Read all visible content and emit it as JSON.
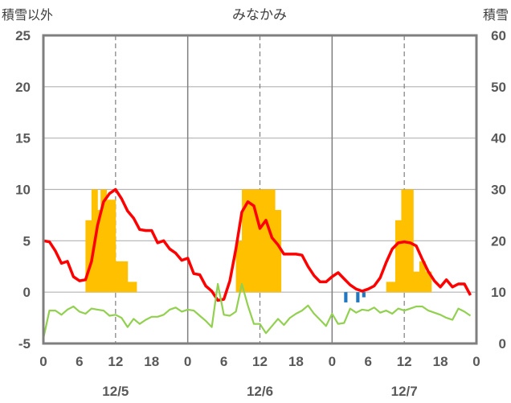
{
  "chart_data": {
    "type": "combo",
    "title": "みなかみ",
    "ylabel_left": "積雪以外",
    "ylabel_right": "積雪",
    "y_left_range": [
      -5,
      25
    ],
    "y_left_ticks": [
      "25",
      "20",
      "15",
      "10",
      "5",
      "0",
      "-5"
    ],
    "y_right_range": [
      0,
      60
    ],
    "y_right_ticks": [
      "60",
      "50",
      "40",
      "30",
      "20",
      "10",
      "0"
    ],
    "x_range": [
      0,
      72
    ],
    "x_ticks": [
      {
        "x": 0,
        "label": "0"
      },
      {
        "x": 6,
        "label": "6"
      },
      {
        "x": 12,
        "label": "12"
      },
      {
        "x": 18,
        "label": "18"
      },
      {
        "x": 24,
        "label": "0"
      },
      {
        "x": 30,
        "label": "6"
      },
      {
        "x": 36,
        "label": "12"
      },
      {
        "x": 42,
        "label": "18"
      },
      {
        "x": 48,
        "label": "0"
      },
      {
        "x": 54,
        "label": "6"
      },
      {
        "x": 60,
        "label": "12"
      },
      {
        "x": 66,
        "label": "18"
      },
      {
        "x": 72,
        "label": "0"
      }
    ],
    "date_labels": [
      {
        "x": 12,
        "label": "12/5"
      },
      {
        "x": 36,
        "label": "12/6"
      },
      {
        "x": 60,
        "label": "12/7"
      }
    ],
    "grid": {
      "day_lines": [
        24,
        48
      ],
      "dashed_hour_lines": [
        12,
        36,
        60
      ],
      "horizontal": [
        0,
        5,
        10,
        15,
        20,
        25
      ]
    },
    "series": [
      {
        "kind": "bar",
        "axis": "left",
        "color": "#ffc000",
        "x": [
          7.5,
          8,
          8.5,
          9,
          9.5,
          10,
          10.5,
          11,
          11.5,
          12,
          12.5,
          13,
          13.5,
          14,
          14.5,
          15,
          15.5,
          32.5,
          33,
          33.5,
          34,
          34.5,
          35,
          35.5,
          36,
          36.5,
          37,
          37.5,
          38,
          38.5,
          39,
          39.5,
          40,
          55.5,
          56,
          56.5,
          57,
          57.5,
          58,
          58.5,
          59,
          59.5,
          60,
          60.5,
          61,
          61.5,
          62,
          62.5,
          63,
          63.5,
          64,
          64.5
        ],
        "values": [
          7,
          7,
          10,
          10,
          8,
          10,
          10,
          9,
          9,
          9,
          3,
          3,
          3,
          3,
          1,
          1,
          1,
          5,
          5,
          10,
          10,
          10,
          10,
          10,
          10,
          10,
          10,
          10,
          10,
          10,
          8,
          8,
          0,
          0,
          0,
          0,
          0,
          1,
          1,
          1,
          7,
          7,
          10,
          10,
          10,
          10,
          2,
          2,
          3,
          3,
          2,
          2
        ]
      },
      {
        "kind": "bar",
        "axis": "left",
        "color": "#1f78c1",
        "x": [
          50.5,
          52.5,
          53.5
        ],
        "values": [
          -1,
          -1,
          -0.5
        ]
      },
      {
        "kind": "line",
        "axis": "left",
        "color": "#ff0000",
        "x": [
          0,
          1,
          2,
          3,
          4,
          5,
          6,
          7,
          8,
          9,
          10,
          11,
          12,
          13,
          14,
          15,
          16,
          17,
          18,
          19,
          20,
          21,
          22,
          23,
          24,
          25,
          26,
          27,
          28,
          29,
          30,
          31,
          32,
          33,
          34,
          35,
          36,
          37,
          38,
          39,
          40,
          41,
          42,
          43,
          44,
          45,
          46,
          47,
          48,
          49,
          50,
          51,
          52,
          53,
          54,
          55,
          56,
          57,
          58,
          59,
          60,
          61,
          62,
          63,
          64,
          65,
          66,
          67,
          68,
          69,
          70,
          71
        ],
        "values": [
          5,
          4.9,
          4,
          2.8,
          3,
          1.5,
          1.1,
          1.2,
          3,
          6.5,
          8.8,
          9.6,
          10,
          9.1,
          7.9,
          7.2,
          6.1,
          6,
          6,
          4.8,
          5,
          4.2,
          3.8,
          3.1,
          3.3,
          1.8,
          1.7,
          0.6,
          0.1,
          -0.8,
          -0.7,
          1.1,
          4.2,
          7.8,
          8.8,
          8.4,
          6.2,
          7,
          5.3,
          4.6,
          3.7,
          3.7,
          3.7,
          3.6,
          2.5,
          1.6,
          1,
          1,
          1.5,
          1.9,
          1.3,
          0.7,
          0.3,
          0.1,
          0.3,
          0.6,
          1.4,
          2.9,
          4.2,
          4.8,
          4.9,
          4.8,
          4.5,
          3.2,
          2,
          1.1,
          0.5,
          1.2,
          0.5,
          0.8,
          0.8,
          -0.3
        ]
      },
      {
        "kind": "line",
        "axis": "left",
        "color": "#92d050",
        "x": [
          0,
          1,
          2,
          3,
          4,
          5,
          6,
          7,
          8,
          9,
          10,
          11,
          12,
          13,
          14,
          15,
          16,
          17,
          18,
          19,
          20,
          21,
          22,
          23,
          24,
          25,
          26,
          27,
          28,
          29,
          30,
          31,
          32,
          33,
          34,
          35,
          36,
          37,
          38,
          39,
          40,
          41,
          42,
          43,
          44,
          45,
          46,
          47,
          48,
          49,
          50,
          51,
          52,
          53,
          54,
          55,
          56,
          57,
          58,
          59,
          60,
          61,
          62,
          63,
          64,
          65,
          66,
          67,
          68,
          69,
          70,
          71
        ],
        "values": [
          -4.5,
          -1.8,
          -1.8,
          -2.2,
          -1.7,
          -1.4,
          -1.9,
          -2.1,
          -1.6,
          -1.7,
          -1.8,
          -2.3,
          -2.2,
          -2.5,
          -3.4,
          -2.6,
          -3.1,
          -2.7,
          -2.4,
          -2.4,
          -2.2,
          -1.7,
          -1.5,
          -1.9,
          -1.7,
          -1.8,
          -2.3,
          -2.8,
          -3.4,
          0.8,
          -2.2,
          -2.3,
          -1.9,
          0.8,
          -1.3,
          -3.1,
          -3.1,
          -4,
          -3.3,
          -2.6,
          -3.2,
          -2.5,
          -2.1,
          -1.8,
          -1.3,
          -2.1,
          -2.7,
          -3.3,
          -2.1,
          -3.1,
          -3,
          -1.6,
          -2,
          -1.7,
          -1.8,
          -1.5,
          -2,
          -1.8,
          -2.1,
          -1.6,
          -1.8,
          -1.6,
          -1.4,
          -1.4,
          -1.8,
          -2,
          -2.2,
          -2.5,
          -2.7,
          -1.6,
          -1.9,
          -2.3
        ]
      },
      {
        "kind": "line",
        "axis": "left",
        "color": "#7030a0",
        "x": [
          0,
          72
        ],
        "values": [
          -5,
          -5
        ]
      }
    ]
  }
}
